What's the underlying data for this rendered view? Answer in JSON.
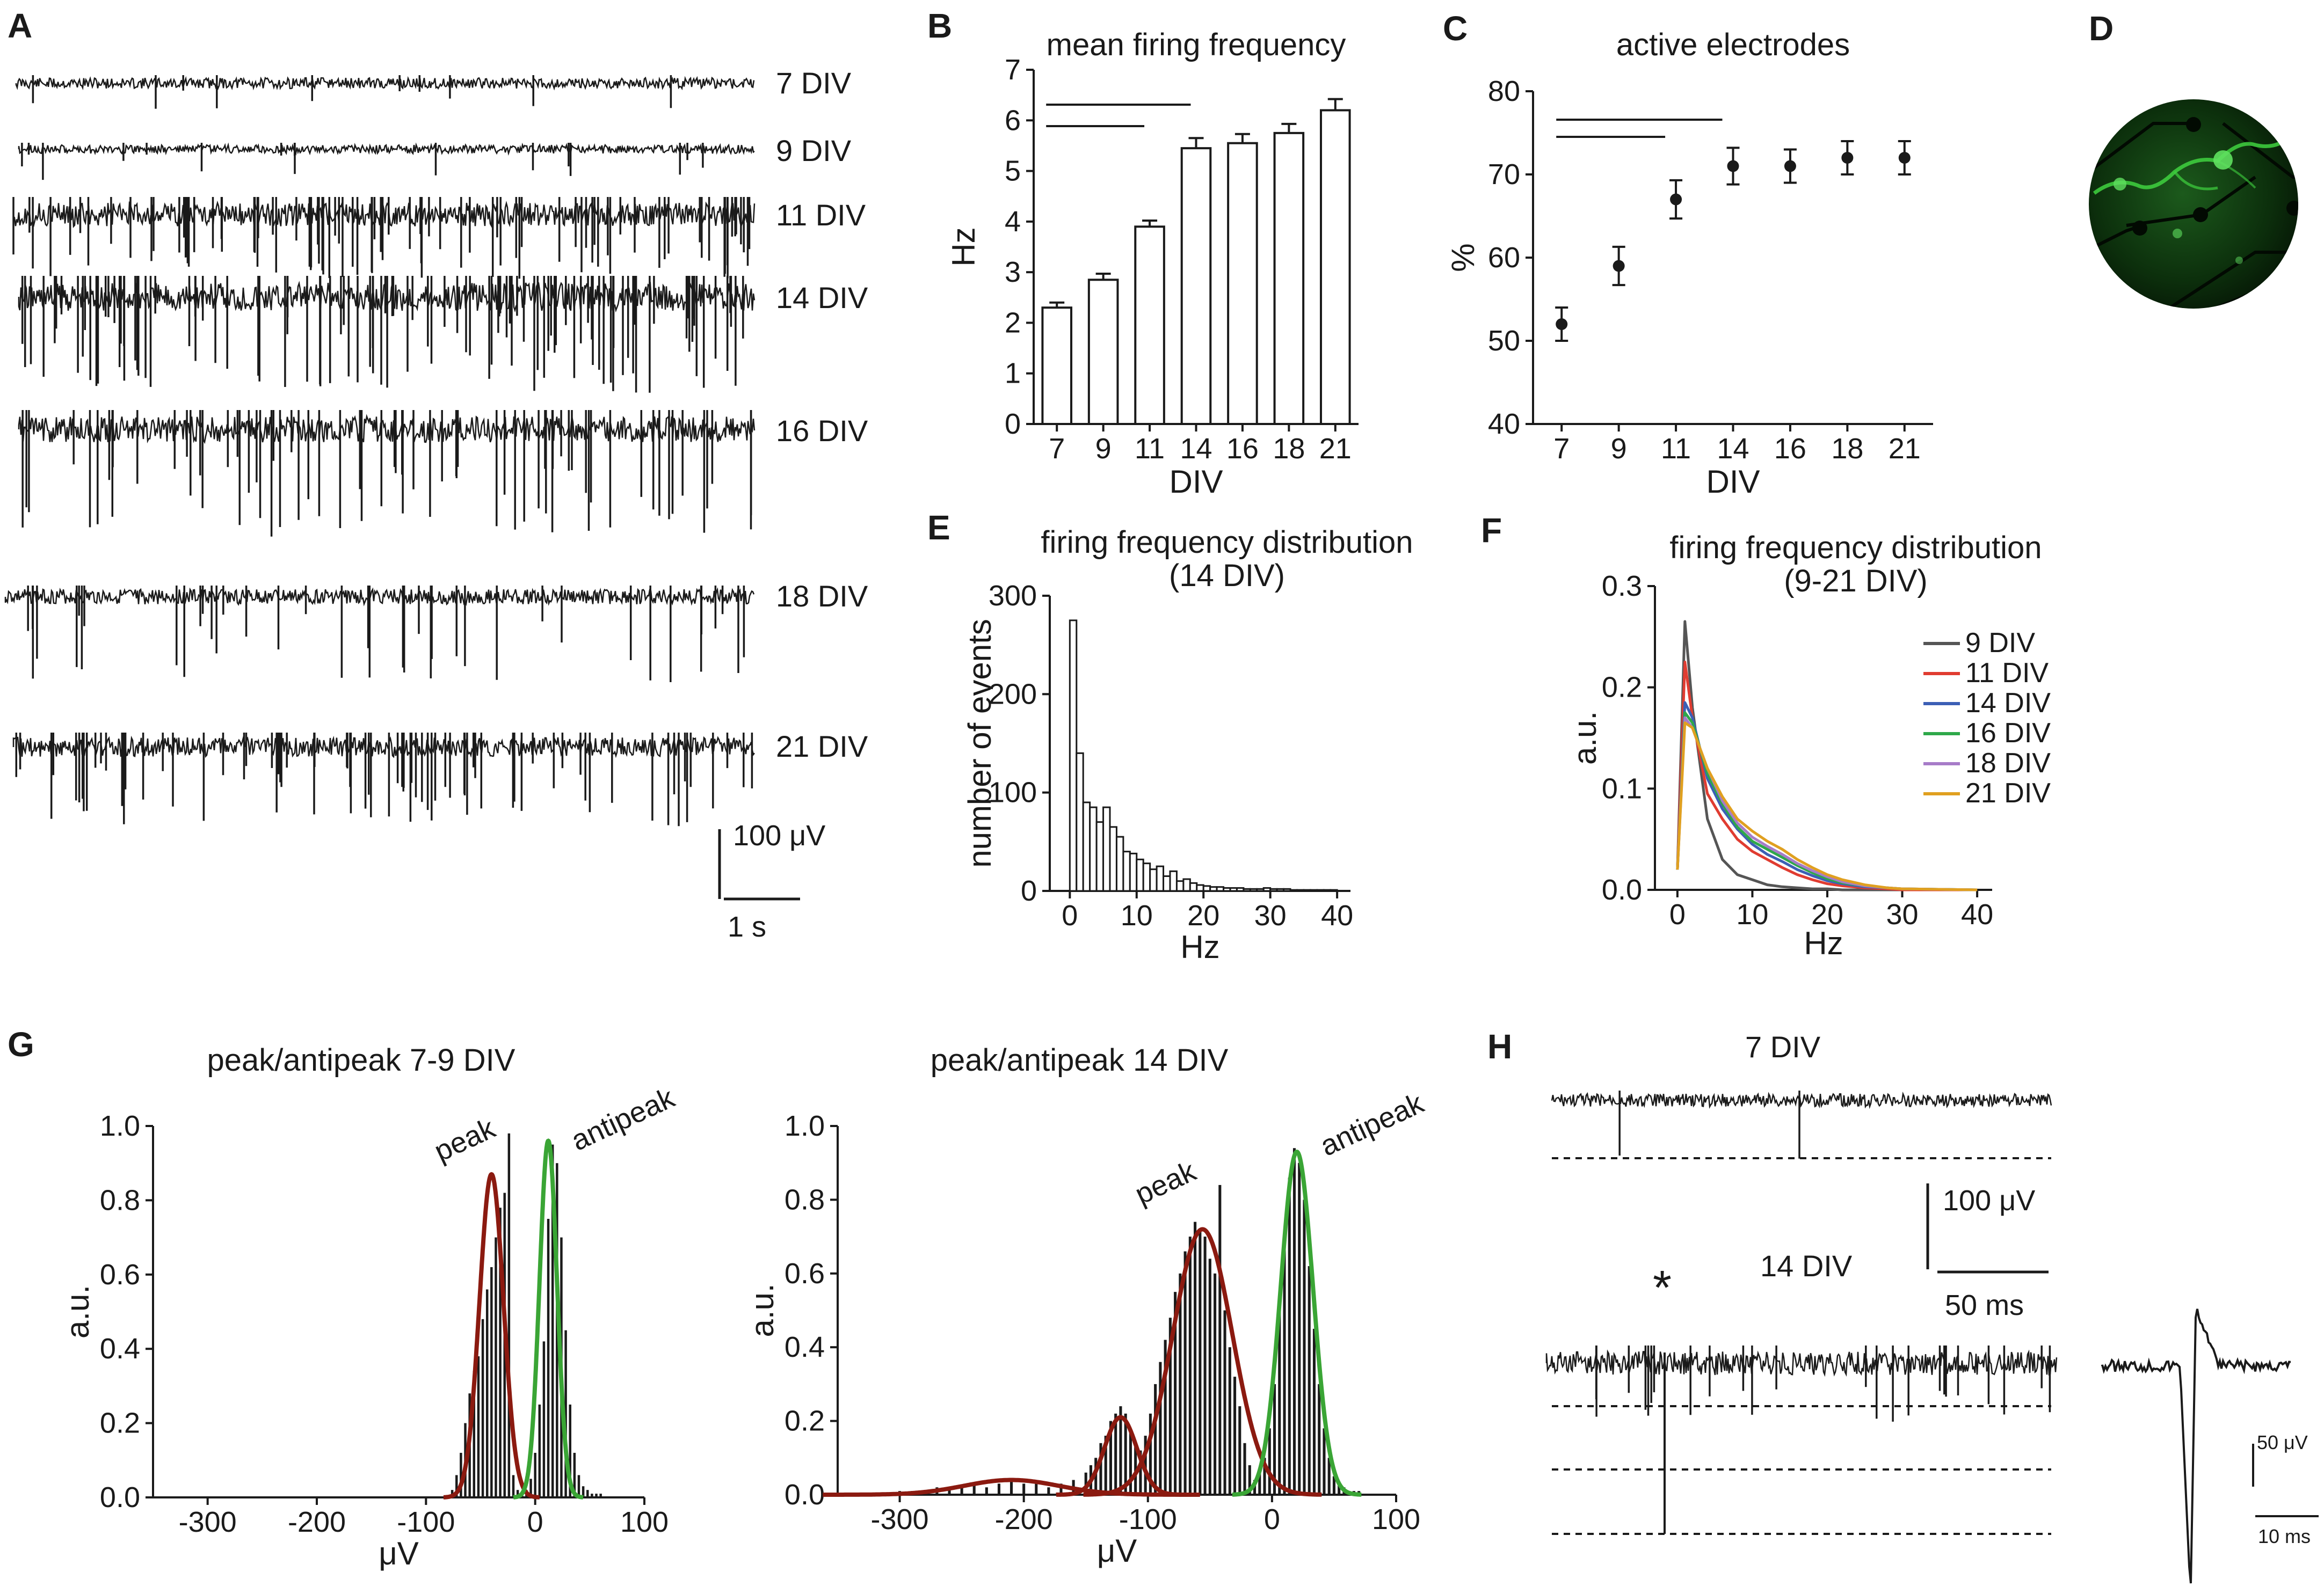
{
  "figure": {
    "panels": {
      "A": {
        "letter": "A",
        "trace_labels": [
          "7 DIV",
          "9 DIV",
          "11 DIV",
          "14 DIV",
          "16 DIV",
          "18 DIV",
          "21 DIV"
        ],
        "scale_voltage": "100 μV",
        "scale_time": "1 s"
      },
      "D": {
        "letter": "D",
        "image": "fluorescence-micrograph-neurons-on-electrodes"
      },
      "H": {
        "letter": "H",
        "label_top": "7 DIV",
        "label_bottom": "14 DIV",
        "scale_voltage": "100 μV",
        "scale_time": "50 ms",
        "asterisk": "*",
        "inset_scale_voltage": "50 μV",
        "inset_scale_time": "10 ms"
      }
    },
    "colors": {
      "ink": "#1a1a1a",
      "peak": "#8b1a10",
      "antipeak": "#3aa535",
      "dish_bg": "#0a2a0a",
      "dish_glow": "#3fd23f",
      "series": [
        "#555555",
        "#e03c31",
        "#3c5fb5",
        "#2ea84a",
        "#a77cc8",
        "#e0a020"
      ]
    }
  },
  "chart_data": [
    {
      "id": "B",
      "letter": "B",
      "type": "bar",
      "title": "mean firing frequency",
      "xlabel": "DIV",
      "ylabel": "Hz",
      "categories": [
        "7",
        "9",
        "11",
        "14",
        "16",
        "18",
        "21"
      ],
      "values": [
        2.3,
        2.85,
        3.9,
        5.45,
        5.55,
        5.75,
        6.2
      ],
      "errors": [
        0.1,
        0.12,
        0.12,
        0.2,
        0.18,
        0.18,
        0.22
      ],
      "ylim": [
        0,
        7
      ],
      "yticks": [
        "0",
        "1",
        "2",
        "3",
        "4",
        "5",
        "6",
        "7"
      ],
      "significance": [
        {
          "from": 0,
          "to": 2
        },
        {
          "from": 0,
          "to": 3
        }
      ]
    },
    {
      "id": "C",
      "letter": "C",
      "type": "scatter",
      "title": "active electrodes",
      "xlabel": "DIV",
      "ylabel": "%",
      "categories": [
        "7",
        "9",
        "11",
        "14",
        "16",
        "18",
        "21"
      ],
      "values": [
        52,
        59,
        67,
        71,
        71,
        72,
        72
      ],
      "errors": [
        2,
        2.3,
        2.3,
        2.2,
        2,
        2,
        2
      ],
      "ylim": [
        40,
        80
      ],
      "yticks": [
        "40",
        "50",
        "60",
        "70",
        "80"
      ],
      "significance": [
        {
          "from": 0,
          "to": 2
        },
        {
          "from": 0,
          "to": 3
        }
      ]
    },
    {
      "id": "E",
      "letter": "E",
      "type": "bar",
      "title": "firing frequency distribution",
      "subtitle": "(14 DIV)",
      "xlabel": "Hz",
      "ylabel": "number of events",
      "bin_width": 1,
      "bin_start": 0,
      "values": [
        275,
        140,
        90,
        85,
        70,
        85,
        65,
        55,
        40,
        38,
        32,
        28,
        22,
        25,
        15,
        20,
        10,
        12,
        8,
        6,
        5,
        4,
        4,
        3,
        3,
        3,
        2,
        2,
        2,
        3,
        2,
        2,
        2,
        1,
        1,
        1,
        1,
        1,
        1,
        1
      ],
      "xlim": [
        -3,
        42
      ],
      "ylim": [
        0,
        300
      ],
      "xticks": [
        "0",
        "10",
        "20",
        "30",
        "40"
      ],
      "yticks": [
        "0",
        "100",
        "200",
        "300"
      ]
    },
    {
      "id": "F",
      "letter": "F",
      "type": "line",
      "title": "firing frequency distribution",
      "subtitle": "(9-21 DIV)",
      "xlabel": "Hz",
      "ylabel": "a.u.",
      "xlim": [
        -3,
        42
      ],
      "ylim": [
        0,
        0.3
      ],
      "xticks": [
        "0",
        "10",
        "20",
        "30",
        "40"
      ],
      "yticks": [
        "0.0",
        "0.1",
        "0.2",
        "0.3"
      ],
      "x": [
        0,
        1,
        2,
        4,
        6,
        8,
        10,
        12,
        14,
        16,
        18,
        20,
        22,
        25,
        28,
        30,
        40
      ],
      "series": [
        {
          "name": "9 DIV",
          "color": "#555555",
          "values": [
            0.02,
            0.265,
            0.18,
            0.07,
            0.03,
            0.015,
            0.01,
            0.005,
            0.003,
            0.002,
            0.001,
            0.001,
            0.0,
            0.0,
            0.0,
            0.0,
            0.0
          ]
        },
        {
          "name": "11 DIV",
          "color": "#e03c31",
          "values": [
            0.02,
            0.225,
            0.17,
            0.095,
            0.07,
            0.05,
            0.038,
            0.03,
            0.022,
            0.015,
            0.01,
            0.006,
            0.004,
            0.002,
            0.001,
            0.0,
            0.0
          ]
        },
        {
          "name": "14 DIV",
          "color": "#3c5fb5",
          "values": [
            0.02,
            0.185,
            0.17,
            0.11,
            0.08,
            0.06,
            0.045,
            0.035,
            0.028,
            0.02,
            0.014,
            0.009,
            0.006,
            0.003,
            0.002,
            0.001,
            0.0
          ]
        },
        {
          "name": "16 DIV",
          "color": "#2ea84a",
          "values": [
            0.02,
            0.175,
            0.165,
            0.115,
            0.085,
            0.062,
            0.048,
            0.04,
            0.032,
            0.024,
            0.017,
            0.011,
            0.007,
            0.004,
            0.002,
            0.001,
            0.0
          ]
        },
        {
          "name": "18 DIV",
          "color": "#a77cc8",
          "values": [
            0.02,
            0.17,
            0.16,
            0.12,
            0.088,
            0.066,
            0.052,
            0.043,
            0.035,
            0.026,
            0.019,
            0.013,
            0.008,
            0.004,
            0.002,
            0.001,
            0.0
          ]
        },
        {
          "name": "21 DIV",
          "color": "#e0a020",
          "values": [
            0.02,
            0.165,
            0.16,
            0.12,
            0.092,
            0.07,
            0.058,
            0.048,
            0.04,
            0.03,
            0.022,
            0.015,
            0.01,
            0.005,
            0.002,
            0.001,
            0.0
          ]
        }
      ]
    },
    {
      "id": "G1",
      "letter": "G",
      "type": "bar",
      "title": "peak/antipeak 7-9 DIV",
      "xlabel": "μV",
      "ylabel": "a.u.",
      "xlim": [
        -350,
        100
      ],
      "ylim": [
        0,
        1
      ],
      "xticks": [
        "-300",
        "-200",
        "-100",
        "0",
        "100"
      ],
      "yticks": [
        "0.0",
        "0.2",
        "0.4",
        "0.6",
        "0.8",
        "1.0"
      ],
      "bin_width": 4,
      "hist_x": [
        -76,
        -72,
        -68,
        -64,
        -60,
        -56,
        -52,
        -48,
        -44,
        -40,
        -36,
        -32,
        -28,
        -24,
        -20,
        -16,
        -12,
        -8,
        -4,
        0,
        4,
        8,
        12,
        16,
        20,
        24,
        28,
        32,
        36,
        40,
        44,
        48,
        52,
        56,
        60
      ],
      "hist_values": [
        0.02,
        0.06,
        0.12,
        0.2,
        0.28,
        0.34,
        0.38,
        0.48,
        0.56,
        0.62,
        0.7,
        0.78,
        0.82,
        0.98,
        0.06,
        0.02,
        0.01,
        0.02,
        0.05,
        0.12,
        0.25,
        0.42,
        0.75,
        0.95,
        0.9,
        0.7,
        0.45,
        0.25,
        0.12,
        0.06,
        0.03,
        0.02,
        0.01,
        0.01,
        0.01
      ],
      "fits": [
        {
          "name": "peak",
          "color": "#8b1a10",
          "center": -40,
          "amplitude": 0.87,
          "sigma": 11
        },
        {
          "name": "antipeak",
          "color": "#3aa535",
          "center": 12,
          "amplitude": 0.96,
          "sigma": 8
        }
      ],
      "annotations": [
        "peak",
        "antipeak"
      ]
    },
    {
      "id": "G2",
      "letter": "",
      "type": "bar",
      "title": "peak/antipeak 14 DIV",
      "xlabel": "μV",
      "ylabel": "a.u.",
      "xlim": [
        -350,
        100
      ],
      "ylim": [
        0,
        1
      ],
      "xticks": [
        "-300",
        "-200",
        "-100",
        "0",
        "100"
      ],
      "yticks": [
        "0.0",
        "0.2",
        "0.4",
        "0.6",
        "0.8",
        "1.0"
      ],
      "bin_width": 4,
      "hist_x": [
        -300,
        -290,
        -280,
        -270,
        -260,
        -250,
        -240,
        -230,
        -220,
        -210,
        -200,
        -190,
        -180,
        -170,
        -160,
        -150,
        -146,
        -142,
        -138,
        -134,
        -130,
        -126,
        -122,
        -118,
        -114,
        -110,
        -106,
        -102,
        -98,
        -94,
        -90,
        -86,
        -82,
        -78,
        -74,
        -70,
        -66,
        -62,
        -58,
        -54,
        -50,
        -46,
        -42,
        -38,
        -34,
        -30,
        -26,
        -22,
        -18,
        -14,
        -10,
        -6,
        -2,
        2,
        6,
        10,
        14,
        18,
        22,
        26,
        30,
        34,
        38,
        42,
        46,
        50,
        54,
        58,
        62,
        66,
        70
      ],
      "hist_values": [
        0.01,
        0.01,
        0.01,
        0.02,
        0.02,
        0.02,
        0.03,
        0.02,
        0.03,
        0.04,
        0.03,
        0.03,
        0.02,
        0.03,
        0.04,
        0.06,
        0.08,
        0.1,
        0.14,
        0.16,
        0.2,
        0.22,
        0.24,
        0.22,
        0.18,
        0.14,
        0.12,
        0.16,
        0.22,
        0.3,
        0.36,
        0.42,
        0.48,
        0.55,
        0.6,
        0.66,
        0.7,
        0.74,
        0.72,
        0.7,
        0.64,
        0.6,
        0.84,
        0.5,
        0.4,
        0.32,
        0.24,
        0.14,
        0.08,
        0.04,
        0.06,
        0.1,
        0.18,
        0.3,
        0.5,
        0.7,
        0.86,
        0.94,
        0.9,
        0.8,
        0.62,
        0.45,
        0.3,
        0.18,
        0.1,
        0.05,
        0.03,
        0.02,
        0.01,
        0.01,
        0.01
      ],
      "fits": [
        {
          "name": "",
          "color": "#8b1a10",
          "center": -210,
          "amplitude": 0.04,
          "sigma": 38
        },
        {
          "name": "",
          "color": "#8b1a10",
          "center": -122,
          "amplitude": 0.21,
          "sigma": 13
        },
        {
          "name": "peak",
          "color": "#8b1a10",
          "center": -56,
          "amplitude": 0.72,
          "sigma": 24
        },
        {
          "name": "antipeak",
          "color": "#3aa535",
          "center": 20,
          "amplitude": 0.93,
          "sigma": 13
        }
      ],
      "annotations": [
        "peak",
        "antipeak"
      ]
    }
  ]
}
